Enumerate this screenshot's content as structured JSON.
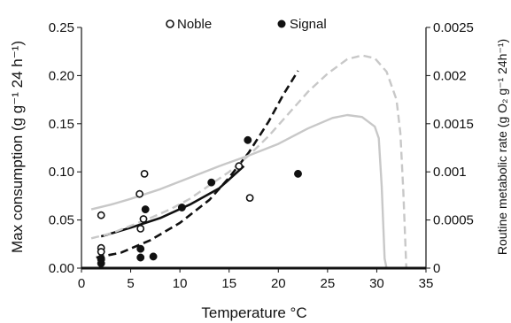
{
  "chart_data": {
    "type": "scatter",
    "xlabel": "Temperature °C",
    "ylabel_left": "Max consumption (g g⁻¹ 24 h⁻¹)",
    "ylabel_right": "Routine metabolic rate (g O₂ g⁻¹ 24h⁻¹)",
    "xlim": [
      0,
      35
    ],
    "ylim_left": [
      0,
      0.25
    ],
    "ylim_right": [
      0,
      0.0025
    ],
    "x_ticks": [
      "0",
      "5",
      "10",
      "15",
      "20",
      "25",
      "30",
      "35"
    ],
    "y_left_ticks": [
      "0.00",
      "0.05",
      "0.10",
      "0.15",
      "0.20",
      "0.25"
    ],
    "y_right_ticks": [
      "0",
      "0.0005",
      "0.001",
      "0.0015",
      "0.002",
      "0.0025"
    ],
    "grid": false,
    "legend_position": "top",
    "legend": [
      {
        "label": "Noble",
        "marker": "open-circle"
      },
      {
        "label": "Signal",
        "marker": "filled-circle"
      }
    ],
    "scatter_series": [
      {
        "name": "Noble",
        "marker": "open",
        "points": [
          [
            2,
            0.055
          ],
          [
            2,
            0.021
          ],
          [
            2,
            0.017
          ],
          [
            2,
            0.01
          ],
          [
            5.9,
            0.077
          ],
          [
            6,
            0.041
          ],
          [
            6.4,
            0.098
          ],
          [
            6.3,
            0.051
          ],
          [
            16,
            0.106
          ],
          [
            17.1,
            0.073
          ]
        ]
      },
      {
        "name": "Signal",
        "marker": "filled",
        "points": [
          [
            2,
            0.005
          ],
          [
            2,
            0.009
          ],
          [
            6,
            0.02
          ],
          [
            6,
            0.011
          ],
          [
            6.5,
            0.061
          ],
          [
            7.3,
            0.012
          ],
          [
            10.2,
            0.063
          ],
          [
            13.2,
            0.089
          ],
          [
            16.9,
            0.133
          ],
          [
            22,
            0.098
          ]
        ]
      }
    ],
    "curves": [
      {
        "style": "solid",
        "color": "#111111",
        "axis": "left",
        "points": [
          [
            2,
            0.033
          ],
          [
            5,
            0.042
          ],
          [
            8,
            0.052
          ],
          [
            11,
            0.066
          ],
          [
            14,
            0.083
          ],
          [
            16.5,
            0.106
          ]
        ]
      },
      {
        "style": "dashed",
        "color": "#111111",
        "axis": "left",
        "points": [
          [
            1.5,
            0.011
          ],
          [
            4,
            0.016
          ],
          [
            7,
            0.029
          ],
          [
            10,
            0.047
          ],
          [
            13,
            0.071
          ],
          [
            15,
            0.094
          ],
          [
            17,
            0.12
          ],
          [
            19,
            0.152
          ],
          [
            20.5,
            0.18
          ],
          [
            22,
            0.205
          ]
        ]
      },
      {
        "style": "solid",
        "color": "#c8c8c8",
        "axis": "right",
        "points": [
          [
            1,
            0.00061
          ],
          [
            3,
            0.00066
          ],
          [
            5,
            0.00072
          ],
          [
            8,
            0.00082
          ],
          [
            11,
            0.00094
          ],
          [
            14,
            0.00106
          ],
          [
            17,
            0.00117
          ],
          [
            20,
            0.00129
          ],
          [
            23,
            0.00145
          ],
          [
            25.5,
            0.00156
          ],
          [
            27,
            0.00159
          ],
          [
            28.5,
            0.00157
          ],
          [
            29.8,
            0.00147
          ],
          [
            30.2,
            0.00135
          ],
          [
            30.5,
            0.00085
          ],
          [
            30.8,
            0.0001
          ],
          [
            31,
            0
          ]
        ]
      },
      {
        "style": "dashed",
        "color": "#c8c8c8",
        "axis": "right",
        "points": [
          [
            1,
            0.00031
          ],
          [
            3,
            0.00036
          ],
          [
            5,
            0.00044
          ],
          [
            7,
            0.00052
          ],
          [
            9,
            0.00061
          ],
          [
            11,
            0.00072
          ],
          [
            13,
            0.00086
          ],
          [
            15,
            0.001
          ],
          [
            17,
            0.00117
          ],
          [
            19,
            0.00137
          ],
          [
            21,
            0.0016
          ],
          [
            23,
            0.00183
          ],
          [
            25,
            0.00202
          ],
          [
            27,
            0.00217
          ],
          [
            28.5,
            0.00221
          ],
          [
            29.8,
            0.00218
          ],
          [
            31,
            0.00204
          ],
          [
            32,
            0.00175
          ],
          [
            32.4,
            0.0014
          ],
          [
            32.7,
            0.0008
          ],
          [
            33,
            0
          ]
        ]
      }
    ]
  }
}
